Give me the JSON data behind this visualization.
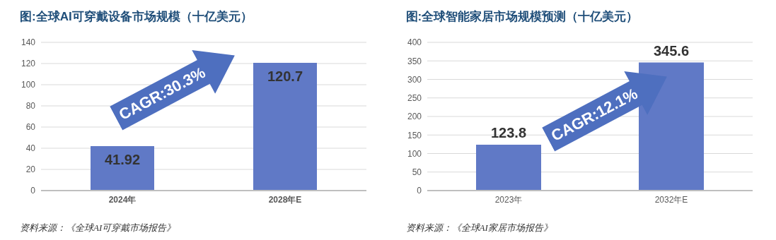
{
  "chart_data": [
    {
      "type": "bar",
      "title": "图:全球AI可穿戴设备市场规模（十亿美元）",
      "categories": [
        "2024年",
        "2028年E"
      ],
      "values": [
        41.92,
        120.7
      ],
      "color": "#6079c6",
      "ylim": [
        0,
        140
      ],
      "yticks": [
        0,
        20,
        40,
        60,
        80,
        100,
        120,
        140
      ],
      "grid": "y",
      "data_labels": true,
      "annotations": [
        "CAGR:30.3%",
        "资料来源：《全球AI可穿戴市场报告》"
      ]
    },
    {
      "type": "bar",
      "title": "图:全球智能家居市场规模预测（十亿美元）",
      "categories": [
        "2023年",
        "2032年E"
      ],
      "values": [
        123.8,
        345.6
      ],
      "color": "#6079c6",
      "ylim": [
        0,
        400
      ],
      "yticks": [
        0,
        50,
        100,
        150,
        200,
        250,
        300,
        350,
        400
      ],
      "grid": "y",
      "data_labels": true,
      "annotations": [
        "CAGR:12.1%",
        "资料来源：《全球AI家居市场报告》"
      ]
    }
  ]
}
